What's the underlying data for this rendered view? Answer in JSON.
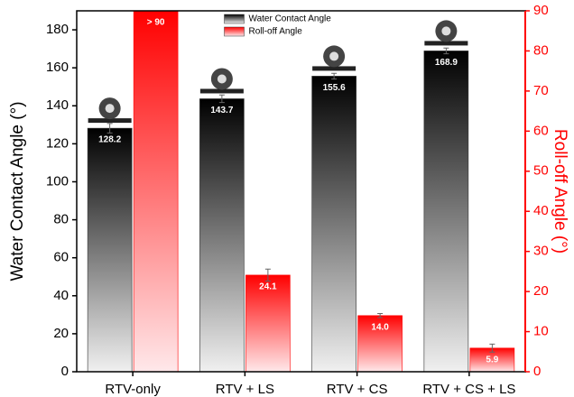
{
  "chart_data": {
    "type": "bar",
    "categories": [
      "RTV-only",
      "RTV + LS",
      "RTV + CS",
      "RTV + CS + LS"
    ],
    "series": [
      {
        "name": "Water Contact Angle",
        "color": "#000000",
        "values": [
          128.2,
          143.7,
          155.6,
          168.9
        ],
        "errors": [
          2.5,
          2,
          1.5,
          1.5
        ]
      },
      {
        "name": "Roll-off Angle",
        "color": "#ff0000",
        "axis": "y2",
        "values": [
          90,
          24.1,
          14,
          5.9
        ],
        "value_labels": [
          "> 90",
          "24.1",
          "14.0",
          "5.9"
        ],
        "errors": [
          null,
          1.5,
          0.5,
          1
        ]
      }
    ],
    "ylabel": "Water Contact Angle (°)",
    "y2label": "Roll-off Angle (°)",
    "ylim": [
      0,
      190
    ],
    "yticks": [
      0,
      20,
      40,
      60,
      80,
      100,
      120,
      140,
      160,
      180
    ],
    "y2lim": [
      0,
      90
    ],
    "y2ticks": [
      0,
      10,
      20,
      30,
      40,
      50,
      60,
      70,
      80,
      90
    ],
    "legend": "upper center"
  }
}
